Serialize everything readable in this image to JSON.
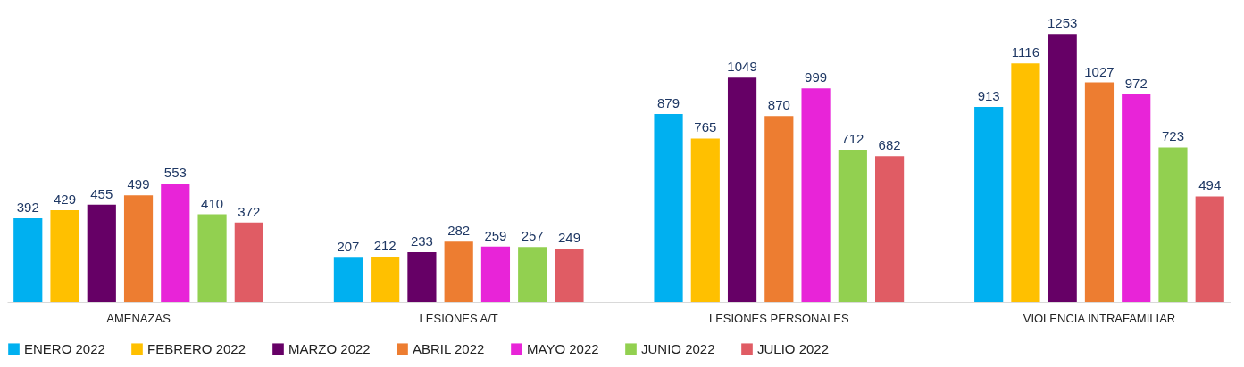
{
  "chart_data": {
    "type": "bar",
    "categories": [
      "AMENAZAS",
      "LESIONES A/T",
      "LESIONES PERSONALES",
      "VIOLENCIA INTRAFAMILIAR"
    ],
    "series": [
      {
        "name": "ENERO 2022",
        "color": "#00b0f0",
        "values": [
          392,
          207,
          879,
          913
        ]
      },
      {
        "name": "FEBRERO 2022",
        "color": "#ffc000",
        "values": [
          429,
          212,
          765,
          1116
        ]
      },
      {
        "name": "MARZO 2022",
        "color": "#660066",
        "values": [
          455,
          233,
          1049,
          1253
        ]
      },
      {
        "name": "ABRIL 2022",
        "color": "#ed7d31",
        "values": [
          499,
          282,
          870,
          1027
        ]
      },
      {
        "name": "MAYO 2022",
        "color": "#e824d8",
        "values": [
          553,
          259,
          999,
          972
        ]
      },
      {
        "name": "JUNIO 2022",
        "color": "#92d050",
        "values": [
          410,
          257,
          712,
          723
        ]
      },
      {
        "name": "JULIO 2022",
        "color": "#e05c64",
        "values": [
          372,
          249,
          682,
          494
        ]
      }
    ],
    "data_labels": true,
    "legend": "bottom",
    "grid": false
  }
}
